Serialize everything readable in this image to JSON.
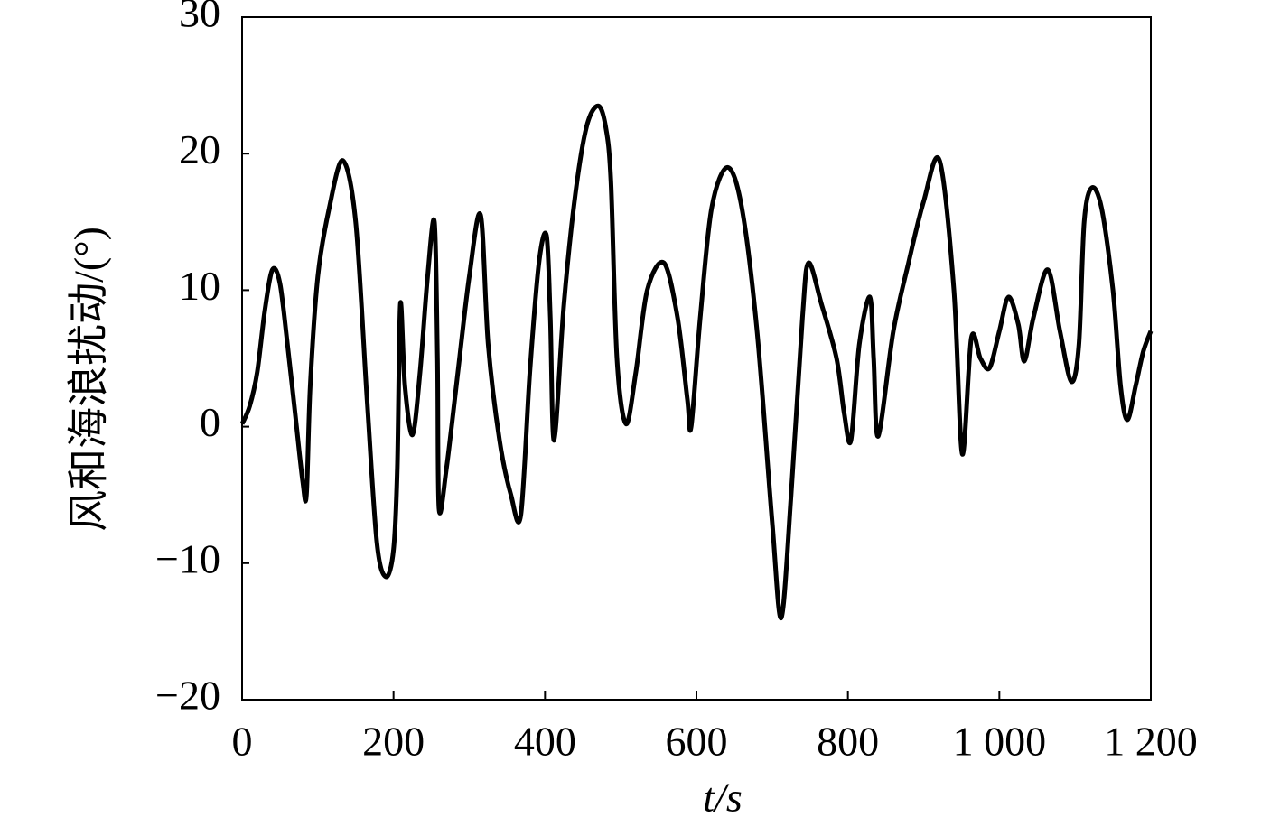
{
  "chart_data": {
    "type": "line",
    "x_label": "t/s",
    "y_label": "风和海浪扰动/(°)",
    "x": [
      0,
      10,
      20,
      30,
      40,
      50,
      60,
      70,
      80,
      85,
      90,
      100,
      115,
      133,
      150,
      165,
      178,
      190,
      200,
      205,
      209,
      215,
      225,
      235,
      245,
      254,
      258,
      260,
      270,
      285,
      300,
      315,
      325,
      340,
      355,
      368,
      380,
      392,
      402,
      407,
      412,
      425,
      440,
      455,
      470,
      480,
      487,
      495,
      507,
      520,
      535,
      557,
      575,
      588,
      593,
      605,
      620,
      641,
      660,
      680,
      700,
      712,
      725,
      740,
      748,
      765,
      785,
      795,
      804,
      815,
      829,
      834,
      840,
      860,
      880,
      900,
      921,
      940,
      951,
      963,
      975,
      987,
      1000,
      1012,
      1025,
      1033,
      1045,
      1064,
      1080,
      1095,
      1105,
      1112,
      1122,
      1135,
      1150,
      1160,
      1169,
      1180,
      1190,
      1200
    ],
    "series": [
      {
        "color": "#000000",
        "values": [
          0.2,
          1.5,
          4,
          8.5,
          11.5,
          10.5,
          6,
          1,
          -4,
          -5,
          3,
          11,
          16,
          19.5,
          15,
          2,
          -8.5,
          -11,
          -9,
          -3,
          9,
          3,
          -0.6,
          4,
          11,
          15,
          5,
          -6,
          -3,
          4,
          11,
          15.5,
          6,
          -1,
          -5,
          -6.5,
          4,
          12,
          14,
          8,
          -1,
          9,
          17,
          22,
          23.5,
          22,
          18,
          5,
          0.2,
          4,
          10,
          12,
          8,
          2,
          0,
          8,
          16,
          19,
          16,
          7,
          -7,
          -14,
          -5,
          8,
          12,
          9,
          5,
          1,
          -1,
          6,
          9.5,
          5,
          -0.7,
          7,
          12,
          16.5,
          19.5,
          10,
          -2,
          6.5,
          5,
          4.3,
          7,
          9.5,
          7.5,
          4.8,
          8,
          11.5,
          7,
          3.3,
          6,
          15,
          17.5,
          16,
          10,
          3,
          0.5,
          3,
          5.5,
          7
        ]
      }
    ],
    "xlim": [
      0,
      1200
    ],
    "ylim": [
      -20,
      30
    ],
    "xticks": [
      0,
      200,
      400,
      600,
      800,
      {
        "value": 1000,
        "label": "1 000"
      },
      {
        "value": 1200,
        "label": "1 200"
      }
    ],
    "yticks": [
      {
        "value": -20,
        "label": "−20"
      },
      {
        "value": -10,
        "label": "−10"
      },
      0,
      10,
      20,
      30
    ]
  }
}
